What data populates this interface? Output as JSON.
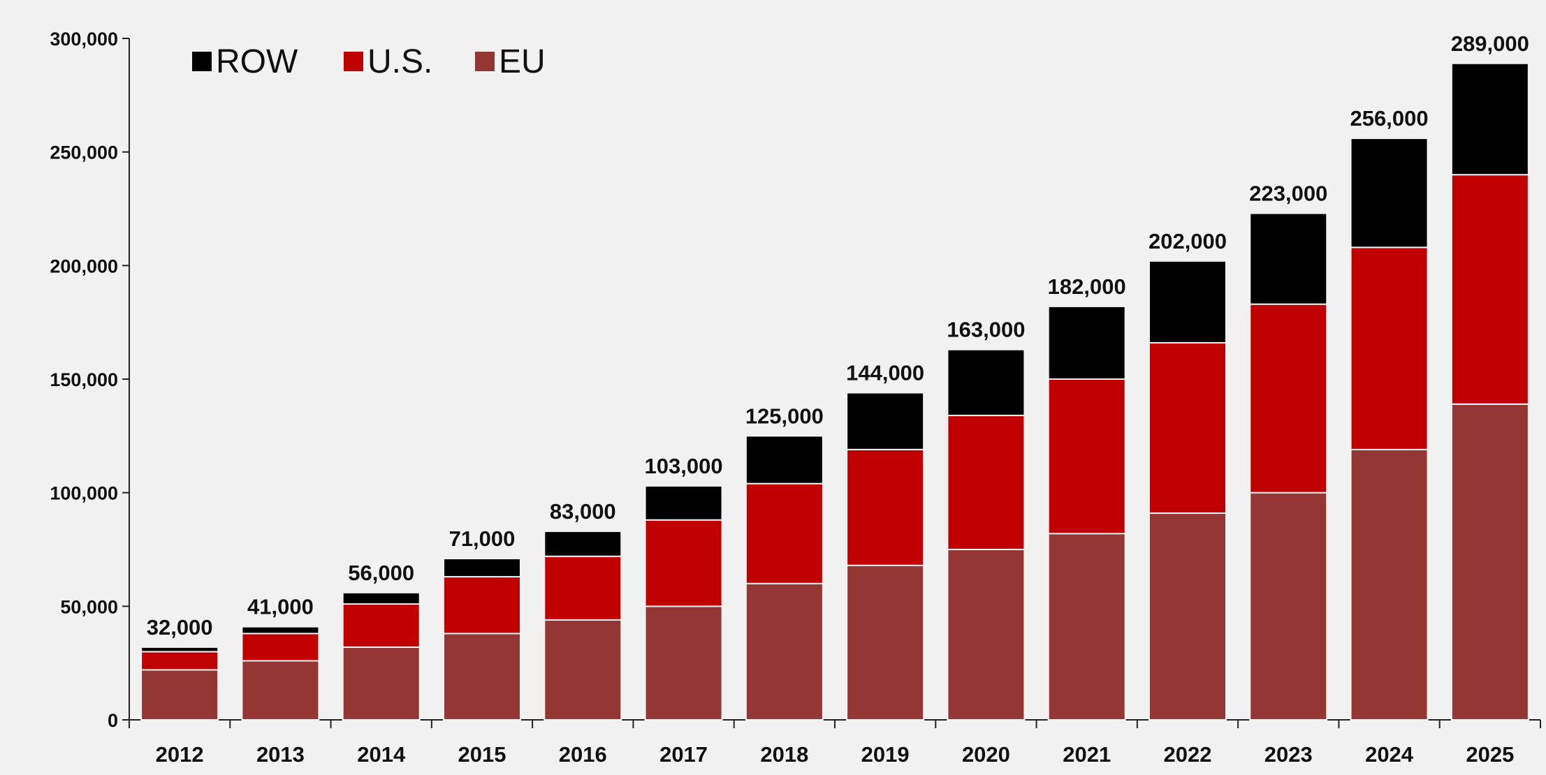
{
  "chart_data": {
    "type": "bar",
    "stacked": true,
    "title": "",
    "xlabel": "",
    "ylabel": "",
    "categories": [
      "2012",
      "2013",
      "2014",
      "2015",
      "2016",
      "2017",
      "2018",
      "2019",
      "2020",
      "2021",
      "2022",
      "2023",
      "2024",
      "2025"
    ],
    "series": [
      {
        "name": "EU",
        "color": "#943634",
        "values": [
          22000,
          26000,
          32000,
          38000,
          44000,
          50000,
          60000,
          68000,
          75000,
          82000,
          91000,
          100000,
          119000,
          139000
        ]
      },
      {
        "name": "U.S.",
        "color": "#c00000",
        "values": [
          8000,
          12000,
          19000,
          25000,
          28000,
          38000,
          44000,
          51000,
          59000,
          68000,
          75000,
          83000,
          89000,
          101000
        ]
      },
      {
        "name": "ROW",
        "color": "#000000",
        "values": [
          2000,
          3000,
          5000,
          8000,
          11000,
          15000,
          21000,
          25000,
          29000,
          32000,
          36000,
          40000,
          48000,
          49000
        ]
      }
    ],
    "totals": [
      "32,000",
      "41,000",
      "56,000",
      "71,000",
      "83,000",
      "103,000",
      "125,000",
      "144,000",
      "163,000",
      "182,000",
      "202,000",
      "223,000",
      "256,000",
      "289,000"
    ],
    "legend_order": [
      "ROW",
      "U.S.",
      "EU"
    ],
    "legend_position": "top-left",
    "ylim": [
      0,
      300000
    ],
    "yticks": [
      0,
      50000,
      100000,
      150000,
      200000,
      250000,
      300000
    ],
    "ytick_labels": [
      "0",
      "50,000",
      "100,000",
      "150,000",
      "200,000",
      "250,000",
      "300,000"
    ],
    "grid": false
  }
}
